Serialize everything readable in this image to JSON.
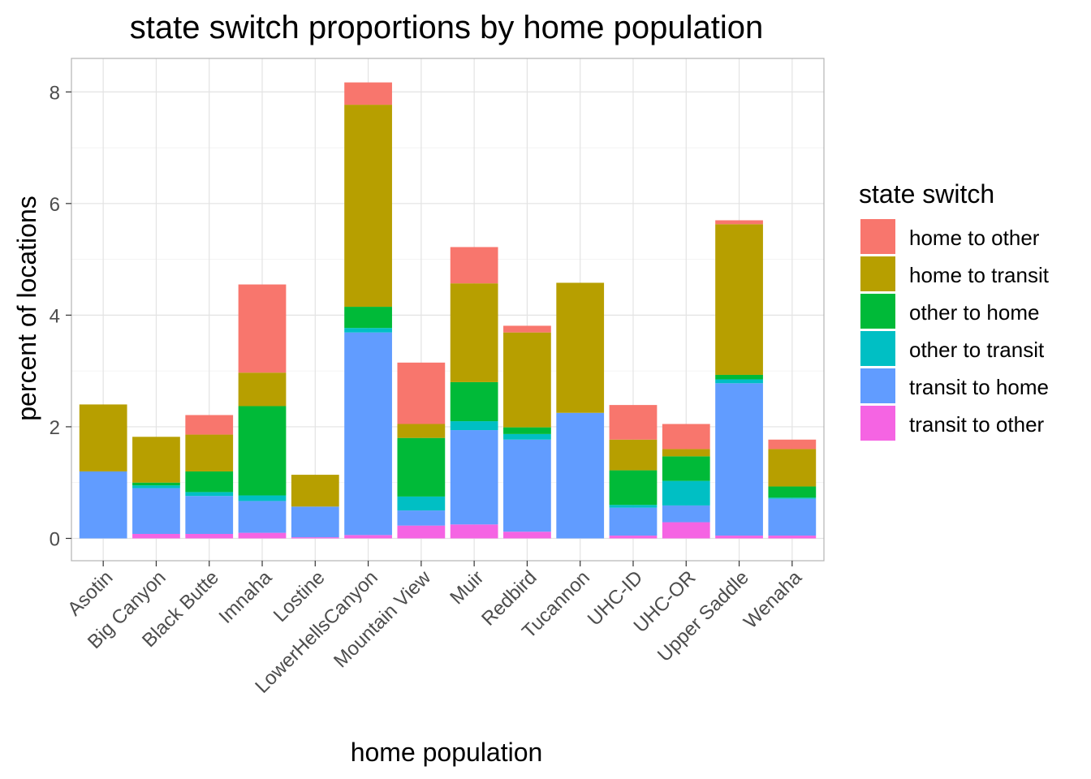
{
  "chart_data": {
    "type": "bar",
    "stacked": true,
    "title": "state switch proportions by home population",
    "xlabel": "home population",
    "ylabel": "percent of locations",
    "ylim": [
      -0.4,
      8.6
    ],
    "y_ticks": [
      0,
      2,
      4,
      6,
      8
    ],
    "grid": true,
    "legend_position": "right",
    "legend_title": "state switch",
    "categories": [
      "Asotin",
      "Big Canyon",
      "Black Butte",
      "Imnaha",
      "Lostine",
      "LowerHellsCanyon",
      "Mountain View",
      "Muir",
      "Redbird",
      "Tucannon",
      "UHC-ID",
      "UHC-OR",
      "Upper Saddle",
      "Wenaha"
    ],
    "series": [
      {
        "name": "transit to other",
        "color": "#F564E3",
        "values": [
          0.0,
          0.08,
          0.08,
          0.1,
          0.02,
          0.06,
          0.23,
          0.25,
          0.12,
          0.0,
          0.05,
          0.29,
          0.05,
          0.05
        ]
      },
      {
        "name": "transit to home",
        "color": "#619CFF",
        "values": [
          1.2,
          0.82,
          0.68,
          0.57,
          0.55,
          3.63,
          0.27,
          1.69,
          1.65,
          2.25,
          0.5,
          0.3,
          2.73,
          0.66
        ]
      },
      {
        "name": "other to transit",
        "color": "#00BFC4",
        "values": [
          0.0,
          0.05,
          0.07,
          0.1,
          0.0,
          0.08,
          0.25,
          0.16,
          0.1,
          0.0,
          0.05,
          0.44,
          0.07,
          0.02
        ]
      },
      {
        "name": "other to home",
        "color": "#00BA38",
        "values": [
          0.0,
          0.05,
          0.37,
          1.6,
          0.0,
          0.38,
          1.05,
          0.7,
          0.12,
          0.0,
          0.62,
          0.44,
          0.08,
          0.2
        ]
      },
      {
        "name": "home to transit",
        "color": "#B79F00",
        "values": [
          1.2,
          0.82,
          0.66,
          0.6,
          0.57,
          3.62,
          0.25,
          1.77,
          1.7,
          2.33,
          0.55,
          0.13,
          2.7,
          0.67
        ]
      },
      {
        "name": "home to other",
        "color": "#F8766D",
        "values": [
          0.0,
          0.0,
          0.35,
          1.58,
          0.0,
          0.4,
          1.1,
          0.65,
          0.12,
          0.0,
          0.62,
          0.45,
          0.07,
          0.17
        ]
      }
    ],
    "legend_order": [
      "home to other",
      "home to transit",
      "other to home",
      "other to transit",
      "transit to home",
      "transit to other"
    ]
  }
}
